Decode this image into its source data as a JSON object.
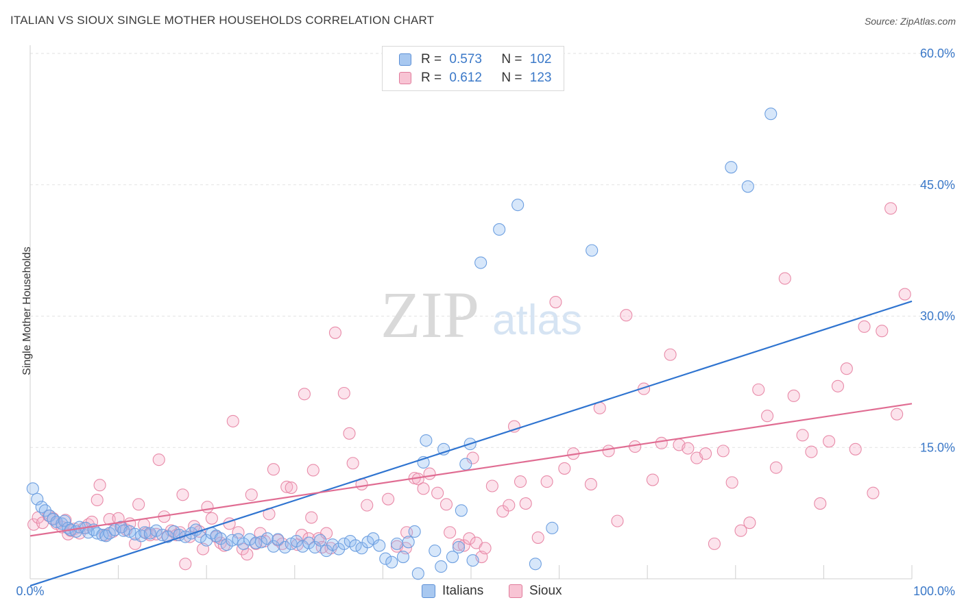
{
  "title": "ITALIAN VS SIOUX SINGLE MOTHER HOUSEHOLDS CORRELATION CHART",
  "source": "Source: ZipAtlas.com",
  "watermark": {
    "zip": "ZIP",
    "atlas": "atlas"
  },
  "legend": {
    "rows": [
      {
        "r_label": "R = ",
        "r_value": "0.573",
        "n_label": "N = ",
        "n_value": "102",
        "color": "#a8c8f0",
        "border": "#5b8fd6"
      },
      {
        "r_label": "R = ",
        "r_value": "0.612",
        "n_label": "N = ",
        "n_value": "123",
        "color": "#f8c4d4",
        "border": "#e07a9a"
      }
    ]
  },
  "bottom_legend": [
    {
      "label": "Italians",
      "color": "#a8c8f0",
      "border": "#5b8fd6"
    },
    {
      "label": "Sioux",
      "color": "#f8c4d4",
      "border": "#e07a9a"
    }
  ],
  "chart_data": {
    "type": "scatter",
    "title": "ITALIAN VS SIOUX SINGLE MOTHER HOUSEHOLDS CORRELATION CHART",
    "xlabel": "",
    "ylabel": "Single Mother Households",
    "xlim": [
      0,
      100
    ],
    "ylim": [
      0,
      60
    ],
    "x_tick_labels": [
      "0.0%",
      "100.0%"
    ],
    "y_ticks": [
      15,
      30,
      45,
      60
    ],
    "y_tick_labels": [
      "15.0%",
      "30.0%",
      "45.0%",
      "60.0%"
    ],
    "grid": "horizontal dashed",
    "series": [
      {
        "name": "Italians",
        "color": "#6d9fe0",
        "fill": "rgba(140,185,240,0.35)",
        "trend": {
          "x": [
            0,
            100
          ],
          "y": [
            -0.8,
            31.7
          ]
        },
        "points": [
          [
            0.3,
            10.3
          ],
          [
            0.8,
            9.1
          ],
          [
            1.3,
            8.2
          ],
          [
            1.7,
            7.8
          ],
          [
            2.2,
            7.2
          ],
          [
            2.6,
            6.8
          ],
          [
            3.0,
            6.5
          ],
          [
            3.6,
            6.3
          ],
          [
            3.9,
            6.6
          ],
          [
            4.3,
            5.8
          ],
          [
            4.6,
            5.6
          ],
          [
            5.2,
            5.4
          ],
          [
            5.6,
            5.9
          ],
          [
            6.3,
            5.8
          ],
          [
            6.6,
            5.3
          ],
          [
            7.2,
            5.6
          ],
          [
            7.6,
            5.2
          ],
          [
            8.2,
            5.0
          ],
          [
            8.6,
            4.9
          ],
          [
            9.0,
            5.2
          ],
          [
            9.6,
            5.6
          ],
          [
            10.3,
            5.9
          ],
          [
            10.6,
            5.5
          ],
          [
            11.3,
            5.4
          ],
          [
            11.9,
            5.1
          ],
          [
            12.6,
            4.9
          ],
          [
            13.0,
            5.3
          ],
          [
            13.6,
            5.2
          ],
          [
            14.3,
            5.5
          ],
          [
            15.0,
            5.0
          ],
          [
            15.6,
            4.8
          ],
          [
            16.3,
            5.4
          ],
          [
            16.9,
            5.0
          ],
          [
            17.6,
            4.8
          ],
          [
            18.3,
            5.2
          ],
          [
            18.8,
            5.6
          ],
          [
            19.3,
            4.8
          ],
          [
            20.0,
            4.4
          ],
          [
            20.6,
            5.2
          ],
          [
            21.1,
            4.9
          ],
          [
            21.6,
            4.6
          ],
          [
            22.3,
            3.9
          ],
          [
            22.9,
            4.4
          ],
          [
            23.6,
            4.5
          ],
          [
            24.2,
            4.0
          ],
          [
            24.9,
            4.5
          ],
          [
            25.6,
            4.1
          ],
          [
            26.2,
            4.2
          ],
          [
            26.9,
            4.6
          ],
          [
            27.6,
            3.7
          ],
          [
            28.1,
            4.5
          ],
          [
            28.9,
            3.6
          ],
          [
            29.6,
            4.0
          ],
          [
            30.2,
            4.3
          ],
          [
            30.9,
            3.7
          ],
          [
            31.6,
            4.1
          ],
          [
            32.3,
            3.6
          ],
          [
            32.9,
            4.4
          ],
          [
            33.6,
            3.2
          ],
          [
            34.3,
            3.9
          ],
          [
            35.0,
            3.4
          ],
          [
            35.6,
            4.0
          ],
          [
            36.3,
            4.3
          ],
          [
            36.9,
            3.8
          ],
          [
            37.6,
            3.5
          ],
          [
            38.3,
            4.2
          ],
          [
            38.9,
            4.6
          ],
          [
            39.6,
            3.8
          ],
          [
            40.3,
            2.3
          ],
          [
            41.0,
            1.9
          ],
          [
            41.6,
            4.0
          ],
          [
            42.3,
            2.5
          ],
          [
            42.9,
            4.2
          ],
          [
            43.6,
            5.4
          ],
          [
            44.0,
            0.6
          ],
          [
            44.6,
            13.3
          ],
          [
            44.9,
            15.8
          ],
          [
            45.9,
            3.2
          ],
          [
            46.6,
            1.4
          ],
          [
            46.9,
            14.8
          ],
          [
            47.9,
            2.5
          ],
          [
            48.6,
            3.6
          ],
          [
            48.9,
            7.8
          ],
          [
            49.4,
            13.1
          ],
          [
            49.9,
            15.4
          ],
          [
            50.2,
            2.1
          ],
          [
            51.1,
            36.1
          ],
          [
            53.2,
            39.9
          ],
          [
            55.3,
            42.7
          ],
          [
            57.3,
            1.7
          ],
          [
            59.2,
            5.8
          ],
          [
            63.7,
            37.5
          ],
          [
            79.5,
            47.0
          ],
          [
            81.4,
            44.8
          ],
          [
            84.0,
            53.1
          ]
        ]
      },
      {
        "name": "Sioux",
        "color": "#e88aa8",
        "fill": "rgba(245,175,200,0.35)",
        "trend": {
          "x": [
            0,
            100
          ],
          "y": [
            4.9,
            20.0
          ]
        },
        "points": [
          [
            0.4,
            6.2
          ],
          [
            0.9,
            7.0
          ],
          [
            1.4,
            6.4
          ],
          [
            2.1,
            7.2
          ],
          [
            2.6,
            6.9
          ],
          [
            3.0,
            6.3
          ],
          [
            3.6,
            5.9
          ],
          [
            4.0,
            6.7
          ],
          [
            4.3,
            5.1
          ],
          [
            4.6,
            5.5
          ],
          [
            5.0,
            5.7
          ],
          [
            5.6,
            5.2
          ],
          [
            6.1,
            5.8
          ],
          [
            6.6,
            6.2
          ],
          [
            7.0,
            6.5
          ],
          [
            7.6,
            9.0
          ],
          [
            7.9,
            10.7
          ],
          [
            8.5,
            5.0
          ],
          [
            9.0,
            6.8
          ],
          [
            9.4,
            5.4
          ],
          [
            10.0,
            6.9
          ],
          [
            10.4,
            5.9
          ],
          [
            10.9,
            5.6
          ],
          [
            11.3,
            6.3
          ],
          [
            11.9,
            4.0
          ],
          [
            12.3,
            8.5
          ],
          [
            12.9,
            6.2
          ],
          [
            13.2,
            5.2
          ],
          [
            13.6,
            5.0
          ],
          [
            14.3,
            5.1
          ],
          [
            14.6,
            13.6
          ],
          [
            15.2,
            7.1
          ],
          [
            15.6,
            4.9
          ],
          [
            16.0,
            5.5
          ],
          [
            16.6,
            5.0
          ],
          [
            17.0,
            5.3
          ],
          [
            17.3,
            9.6
          ],
          [
            17.6,
            1.7
          ],
          [
            18.1,
            4.8
          ],
          [
            18.6,
            6.0
          ],
          [
            19.2,
            5.4
          ],
          [
            19.6,
            3.4
          ],
          [
            20.1,
            8.2
          ],
          [
            20.6,
            6.9
          ],
          [
            21.1,
            4.8
          ],
          [
            21.6,
            4.1
          ],
          [
            22.0,
            3.8
          ],
          [
            22.6,
            6.3
          ],
          [
            23.0,
            18.0
          ],
          [
            23.6,
            5.3
          ],
          [
            24.1,
            3.4
          ],
          [
            24.6,
            2.8
          ],
          [
            25.1,
            9.6
          ],
          [
            25.6,
            4.0
          ],
          [
            26.1,
            5.2
          ],
          [
            26.6,
            4.3
          ],
          [
            27.1,
            7.4
          ],
          [
            27.6,
            12.5
          ],
          [
            28.1,
            4.4
          ],
          [
            28.6,
            4.0
          ],
          [
            29.1,
            10.5
          ],
          [
            29.6,
            10.4
          ],
          [
            30.3,
            3.9
          ],
          [
            30.8,
            5.0
          ],
          [
            31.1,
            21.1
          ],
          [
            31.6,
            4.6
          ],
          [
            31.9,
            7.0
          ],
          [
            32.1,
            12.4
          ],
          [
            32.7,
            4.6
          ],
          [
            33.1,
            3.6
          ],
          [
            33.6,
            5.2
          ],
          [
            34.1,
            3.5
          ],
          [
            34.6,
            28.1
          ],
          [
            35.6,
            21.2
          ],
          [
            36.2,
            16.6
          ],
          [
            36.6,
            13.2
          ],
          [
            37.6,
            10.8
          ],
          [
            38.2,
            8.4
          ],
          [
            40.6,
            9.1
          ],
          [
            41.6,
            3.7
          ],
          [
            42.6,
            3.5
          ],
          [
            42.7,
            5.3
          ],
          [
            43.6,
            11.5
          ],
          [
            44.0,
            11.4
          ],
          [
            44.6,
            10.3
          ],
          [
            45.3,
            12.0
          ],
          [
            46.2,
            9.8
          ],
          [
            47.2,
            8.5
          ],
          [
            47.6,
            5.3
          ],
          [
            48.6,
            3.9
          ],
          [
            49.2,
            3.8
          ],
          [
            49.8,
            4.6
          ],
          [
            50.2,
            13.8
          ],
          [
            50.6,
            4.1
          ],
          [
            51.2,
            2.5
          ],
          [
            51.6,
            3.5
          ],
          [
            52.4,
            10.6
          ],
          [
            53.6,
            7.7
          ],
          [
            54.3,
            8.4
          ],
          [
            54.9,
            17.4
          ],
          [
            55.6,
            11.1
          ],
          [
            56.2,
            8.6
          ],
          [
            57.6,
            4.7
          ],
          [
            58.6,
            11.1
          ],
          [
            59.6,
            31.6
          ],
          [
            60.6,
            12.6
          ],
          [
            61.6,
            14.3
          ],
          [
            63.6,
            10.8
          ],
          [
            64.6,
            19.5
          ],
          [
            65.6,
            14.6
          ],
          [
            66.6,
            6.6
          ],
          [
            67.6,
            30.1
          ],
          [
            68.6,
            15.1
          ],
          [
            69.6,
            21.7
          ],
          [
            70.6,
            11.3
          ],
          [
            71.6,
            15.5
          ],
          [
            72.6,
            25.6
          ],
          [
            73.6,
            15.3
          ],
          [
            74.6,
            14.9
          ],
          [
            75.6,
            13.8
          ],
          [
            76.6,
            14.3
          ],
          [
            77.6,
            4.0
          ],
          [
            78.6,
            14.6
          ],
          [
            79.6,
            11.0
          ],
          [
            80.6,
            5.5
          ],
          [
            81.6,
            6.4
          ],
          [
            82.6,
            21.6
          ],
          [
            83.6,
            18.6
          ],
          [
            84.6,
            12.7
          ],
          [
            85.6,
            34.3
          ],
          [
            86.6,
            20.9
          ],
          [
            87.6,
            16.4
          ],
          [
            88.6,
            14.5
          ],
          [
            89.6,
            8.6
          ],
          [
            90.6,
            15.7
          ],
          [
            91.6,
            22.0
          ],
          [
            92.6,
            24.0
          ],
          [
            93.6,
            14.8
          ],
          [
            94.6,
            28.8
          ],
          [
            95.6,
            9.8
          ],
          [
            96.6,
            28.3
          ],
          [
            97.6,
            42.3
          ],
          [
            98.3,
            18.8
          ],
          [
            99.2,
            32.5
          ]
        ]
      }
    ]
  }
}
